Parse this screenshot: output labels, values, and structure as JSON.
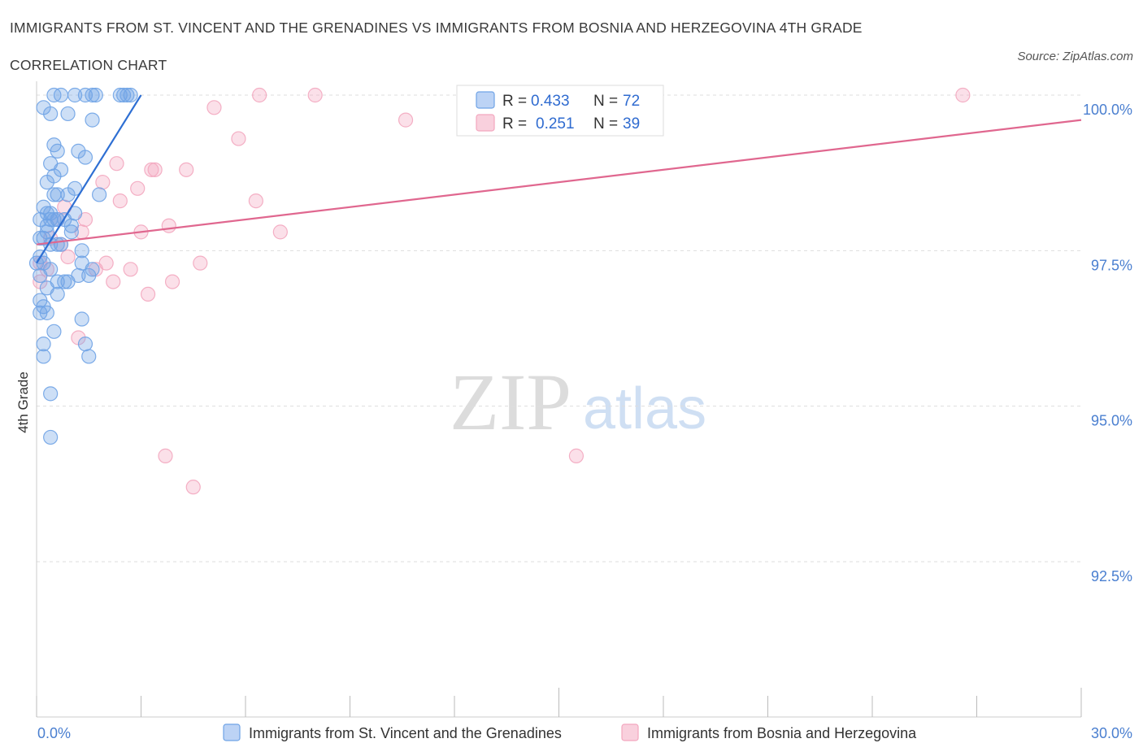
{
  "title_line1": "IMMIGRANTS FROM ST. VINCENT AND THE GRENADINES VS IMMIGRANTS FROM BOSNIA AND HERZEGOVINA 4TH GRADE",
  "title_line2": "CORRELATION CHART",
  "source": "Source: ZipAtlas.com",
  "watermark": {
    "zip": "ZIP",
    "atlas": "atlas"
  },
  "colors": {
    "blue": "#6fa3e6",
    "blue_line": "#2e6fd3",
    "pink": "#f3a7bf",
    "pink_line": "#e0678f",
    "grid": "#dddddd",
    "axis_label": "#4a7fd0"
  },
  "legend_box": {
    "blue": {
      "r_label": "R = ",
      "r_value": "0.433",
      "n_label": "N = ",
      "n_value": "72"
    },
    "pink": {
      "r_label": "R = ",
      "r_value": "0.251",
      "n_label": "N = ",
      "n_value": "39"
    }
  },
  "chart_data": {
    "type": "scatter",
    "xlabel": "",
    "ylabel": "4th Grade",
    "x_tick_labels": [
      "0.0%",
      "30.0%"
    ],
    "y_tick_labels": [
      "100.0%",
      "97.5%",
      "95.0%",
      "92.5%"
    ],
    "y_ticks": [
      100.0,
      97.5,
      95.0,
      92.5
    ],
    "xlim": [
      0,
      30
    ],
    "ylim": [
      90.0,
      100.25
    ],
    "grid": true,
    "legend_position": "bottom",
    "series": [
      {
        "name": "Immigrants from St. Vincent and the Grenadines",
        "color": "#6fa3e6",
        "trend": {
          "x": [
            0.0,
            3.0
          ],
          "y": [
            97.3,
            100.0
          ]
        },
        "points": [
          [
            0.5,
            100.0
          ],
          [
            0.7,
            100.0
          ],
          [
            1.1,
            100.0
          ],
          [
            1.4,
            100.0
          ],
          [
            1.6,
            100.0
          ],
          [
            1.7,
            100.0
          ],
          [
            2.4,
            100.0
          ],
          [
            2.5,
            100.0
          ],
          [
            2.7,
            100.0
          ],
          [
            0.2,
            99.8
          ],
          [
            0.4,
            99.7
          ],
          [
            0.9,
            99.7
          ],
          [
            1.6,
            99.6
          ],
          [
            0.5,
            99.2
          ],
          [
            0.6,
            99.1
          ],
          [
            1.2,
            99.1
          ],
          [
            1.4,
            99.0
          ],
          [
            0.4,
            98.9
          ],
          [
            0.7,
            98.8
          ],
          [
            0.5,
            98.7
          ],
          [
            0.3,
            98.6
          ],
          [
            1.1,
            98.5
          ],
          [
            0.9,
            98.4
          ],
          [
            0.5,
            98.4
          ],
          [
            0.6,
            98.4
          ],
          [
            1.8,
            98.4
          ],
          [
            0.2,
            98.2
          ],
          [
            0.3,
            98.1
          ],
          [
            0.4,
            98.1
          ],
          [
            1.1,
            98.1
          ],
          [
            0.1,
            98.0
          ],
          [
            0.4,
            98.0
          ],
          [
            0.5,
            98.0
          ],
          [
            0.6,
            98.0
          ],
          [
            0.3,
            97.9
          ],
          [
            1.0,
            97.9
          ],
          [
            0.1,
            97.7
          ],
          [
            0.2,
            97.7
          ],
          [
            0.4,
            97.6
          ],
          [
            0.6,
            97.6
          ],
          [
            0.7,
            97.6
          ],
          [
            1.3,
            97.5
          ],
          [
            0.1,
            97.4
          ],
          [
            0.2,
            97.3
          ],
          [
            1.3,
            97.3
          ],
          [
            1.6,
            97.2
          ],
          [
            0.4,
            97.2
          ],
          [
            0.1,
            97.1
          ],
          [
            1.2,
            97.1
          ],
          [
            1.5,
            97.1
          ],
          [
            0.6,
            97.0
          ],
          [
            0.8,
            97.0
          ],
          [
            0.9,
            97.0
          ],
          [
            0.3,
            96.9
          ],
          [
            0.6,
            96.8
          ],
          [
            0.1,
            96.7
          ],
          [
            0.2,
            96.6
          ],
          [
            0.3,
            96.5
          ],
          [
            0.1,
            96.5
          ],
          [
            1.3,
            96.4
          ],
          [
            0.5,
            96.2
          ],
          [
            0.2,
            96.0
          ],
          [
            1.4,
            96.0
          ],
          [
            0.2,
            95.8
          ],
          [
            1.5,
            95.8
          ],
          [
            0.4,
            95.2
          ],
          [
            0.4,
            94.5
          ],
          [
            2.6,
            100.0
          ],
          [
            0.0,
            97.3
          ],
          [
            1.0,
            97.8
          ],
          [
            0.3,
            97.8
          ],
          [
            0.8,
            98.0
          ]
        ]
      },
      {
        "name": "Immigrants from Bosnia and Herzegovina",
        "color": "#f3a7bf",
        "trend": {
          "x": [
            0.0,
            30.0
          ],
          "y": [
            97.6,
            99.6
          ]
        },
        "points": [
          [
            6.4,
            100.0
          ],
          [
            8.0,
            100.0
          ],
          [
            12.4,
            100.0
          ],
          [
            26.6,
            100.0
          ],
          [
            5.1,
            99.8
          ],
          [
            10.6,
            99.6
          ],
          [
            5.8,
            99.3
          ],
          [
            2.3,
            98.9
          ],
          [
            3.3,
            98.8
          ],
          [
            3.4,
            98.8
          ],
          [
            4.3,
            98.8
          ],
          [
            1.9,
            98.6
          ],
          [
            2.9,
            98.5
          ],
          [
            2.4,
            98.3
          ],
          [
            6.3,
            98.3
          ],
          [
            1.4,
            98.0
          ],
          [
            0.6,
            98.0
          ],
          [
            3.8,
            97.9
          ],
          [
            7.0,
            97.8
          ],
          [
            3.0,
            97.8
          ],
          [
            1.3,
            97.8
          ],
          [
            0.7,
            97.6
          ],
          [
            0.9,
            97.4
          ],
          [
            2.0,
            97.3
          ],
          [
            4.7,
            97.3
          ],
          [
            2.7,
            97.2
          ],
          [
            0.3,
            97.2
          ],
          [
            1.7,
            97.2
          ],
          [
            2.2,
            97.0
          ],
          [
            3.9,
            97.0
          ],
          [
            0.1,
            97.0
          ],
          [
            3.2,
            96.8
          ],
          [
            1.2,
            96.1
          ],
          [
            3.7,
            94.2
          ],
          [
            15.5,
            94.2
          ],
          [
            4.5,
            93.7
          ],
          [
            0.1,
            97.3
          ],
          [
            0.4,
            97.7
          ],
          [
            0.8,
            98.2
          ]
        ]
      }
    ]
  }
}
